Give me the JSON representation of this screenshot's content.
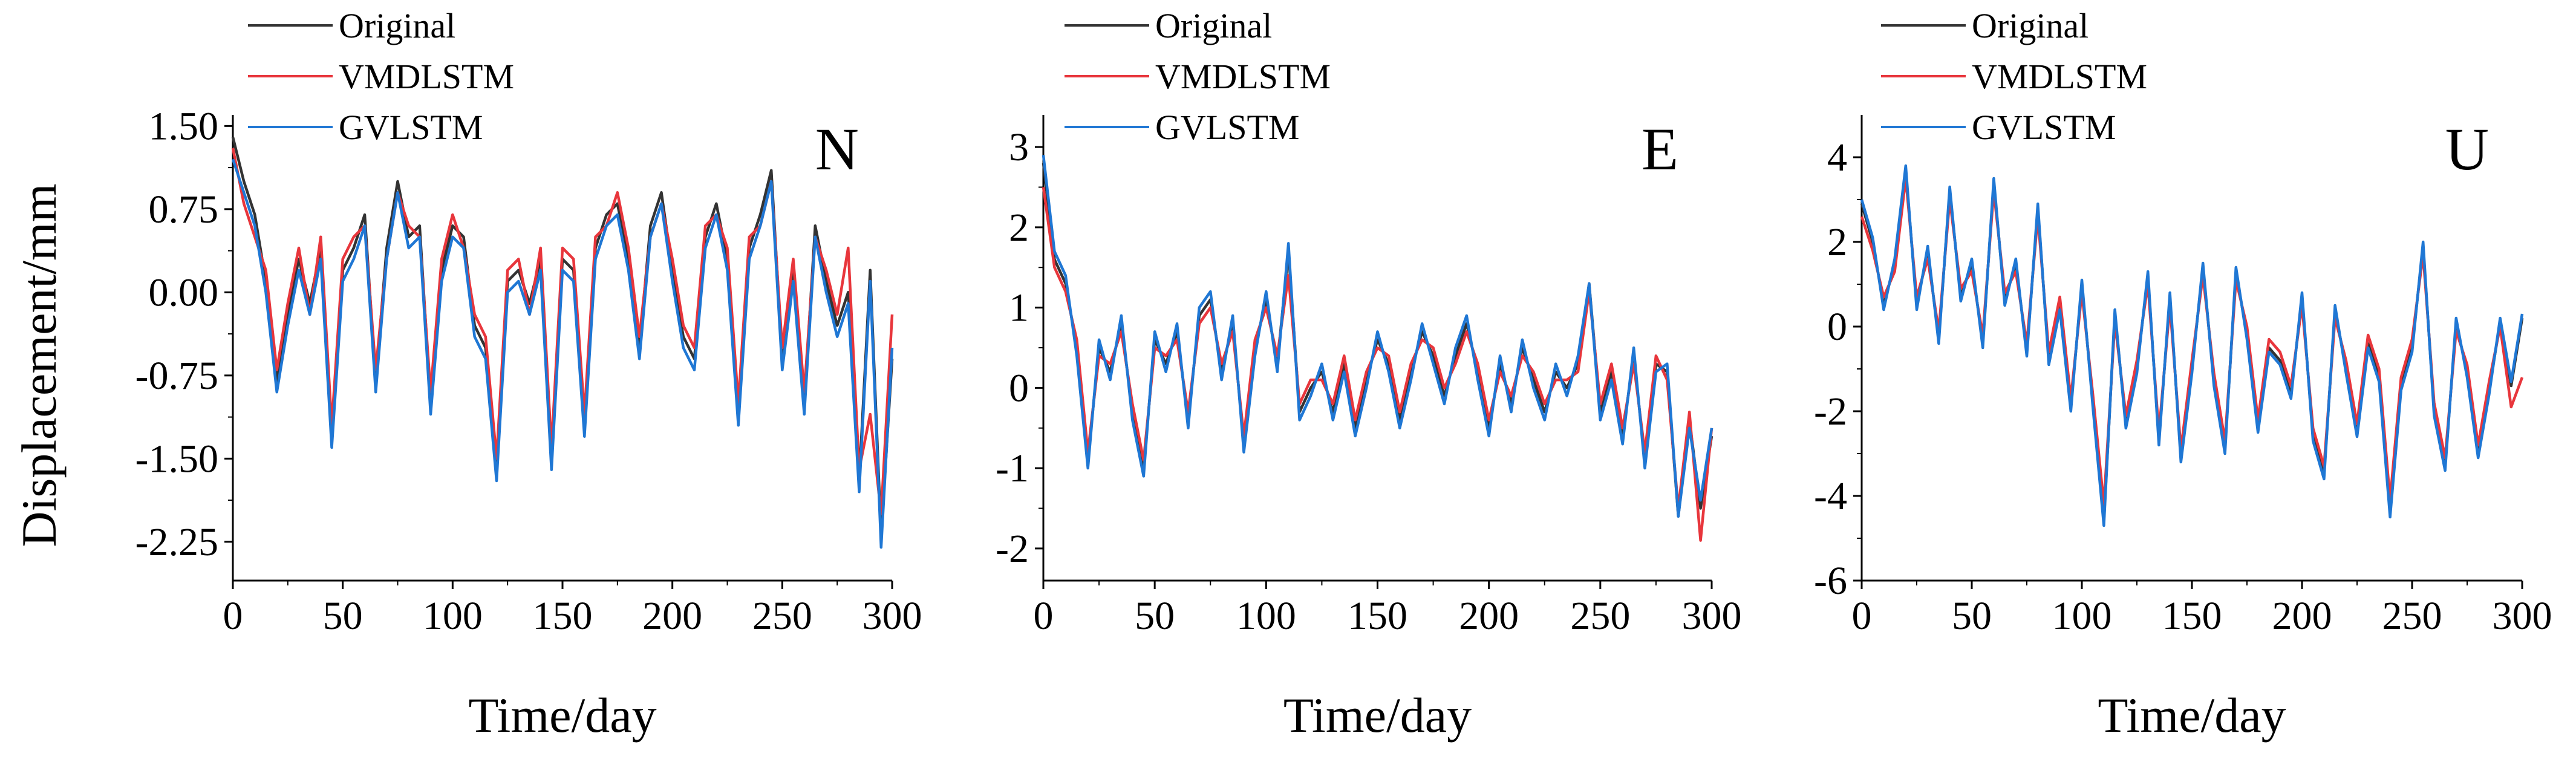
{
  "figure": {
    "ylabel": "Displacement/mm"
  },
  "chart_data": [
    {
      "type": "line",
      "panel_label": "N",
      "xlabel": "Time/day",
      "ylabel": "Displacement/mm",
      "xlim": [
        0,
        300
      ],
      "ylim": [
        -2.6,
        1.6
      ],
      "xticks": [
        0,
        50,
        100,
        150,
        200,
        250,
        300
      ],
      "yticks": [
        -2.25,
        -1.5,
        -0.75,
        0.0,
        0.75,
        1.5
      ],
      "ytick_labels": [
        "-2.25",
        "-1.50",
        "-0.75",
        "0.00",
        "0.75",
        "1.50"
      ],
      "legend": [
        "Original",
        "VMDLSTM",
        "GVLSTM"
      ],
      "x": [
        0,
        5,
        10,
        15,
        20,
        25,
        30,
        35,
        40,
        45,
        50,
        55,
        60,
        65,
        70,
        75,
        80,
        85,
        90,
        95,
        100,
        105,
        110,
        115,
        120,
        125,
        130,
        135,
        140,
        145,
        150,
        155,
        160,
        165,
        170,
        175,
        180,
        185,
        190,
        195,
        200,
        205,
        210,
        215,
        220,
        225,
        230,
        235,
        240,
        245,
        250,
        255,
        260,
        265,
        270,
        275,
        280,
        285,
        290,
        295,
        300
      ],
      "series": [
        {
          "name": "Original",
          "color": "#333333",
          "values": [
            1.4,
            1.0,
            0.7,
            0.1,
            -0.8,
            -0.2,
            0.3,
            -0.1,
            0.4,
            -1.3,
            0.2,
            0.4,
            0.7,
            -0.8,
            0.4,
            1.0,
            0.5,
            0.6,
            -1.0,
            0.2,
            0.6,
            0.5,
            -0.3,
            -0.5,
            -1.6,
            0.1,
            0.2,
            -0.1,
            0.3,
            -1.5,
            0.3,
            0.2,
            -1.2,
            0.4,
            0.7,
            0.8,
            0.3,
            -0.5,
            0.6,
            0.9,
            0.2,
            -0.4,
            -0.6,
            0.5,
            0.8,
            0.3,
            -1.1,
            0.4,
            0.7,
            1.1,
            -0.6,
            0.2,
            -1.0,
            0.6,
            0.1,
            -0.3,
            0.0,
            -1.7,
            0.2,
            -2.2,
            -0.6
          ]
        },
        {
          "name": "VMDLSTM",
          "color": "#e8363c",
          "values": [
            1.3,
            0.8,
            0.5,
            0.2,
            -0.7,
            -0.1,
            0.4,
            -0.2,
            0.5,
            -1.2,
            0.3,
            0.5,
            0.6,
            -0.7,
            0.3,
            0.9,
            0.6,
            0.5,
            -0.9,
            0.3,
            0.7,
            0.4,
            -0.2,
            -0.4,
            -1.5,
            0.2,
            0.3,
            -0.2,
            0.4,
            -1.4,
            0.4,
            0.3,
            -1.1,
            0.5,
            0.6,
            0.9,
            0.4,
            -0.4,
            0.5,
            0.8,
            0.3,
            -0.3,
            -0.5,
            0.6,
            0.7,
            0.4,
            -1.0,
            0.5,
            0.6,
            1.0,
            -0.5,
            0.3,
            -0.9,
            0.5,
            0.2,
            -0.2,
            0.4,
            -1.6,
            -1.1,
            -2.0,
            -0.2
          ]
        },
        {
          "name": "GVLSTM",
          "color": "#1f77d4",
          "values": [
            1.2,
            0.9,
            0.6,
            0.0,
            -0.9,
            -0.3,
            0.2,
            -0.2,
            0.3,
            -1.4,
            0.1,
            0.3,
            0.6,
            -0.9,
            0.3,
            0.9,
            0.4,
            0.5,
            -1.1,
            0.1,
            0.5,
            0.4,
            -0.4,
            -0.6,
            -1.7,
            0.0,
            0.1,
            -0.2,
            0.2,
            -1.6,
            0.2,
            0.1,
            -1.3,
            0.3,
            0.6,
            0.7,
            0.2,
            -0.6,
            0.5,
            0.8,
            0.1,
            -0.5,
            -0.7,
            0.4,
            0.7,
            0.2,
            -1.2,
            0.3,
            0.6,
            1.0,
            -0.7,
            0.1,
            -1.1,
            0.5,
            0.0,
            -0.4,
            -0.1,
            -1.8,
            0.1,
            -2.3,
            -0.5
          ]
        }
      ]
    },
    {
      "type": "line",
      "panel_label": "E",
      "xlabel": "Time/day",
      "ylabel": "",
      "xlim": [
        0,
        300
      ],
      "ylim": [
        -2.4,
        3.4
      ],
      "xticks": [
        0,
        50,
        100,
        150,
        200,
        250,
        300
      ],
      "yticks": [
        -2,
        -1,
        0,
        1,
        2,
        3
      ],
      "ytick_labels": [
        "-2",
        "-1",
        "0",
        "1",
        "2",
        "3"
      ],
      "legend": [
        "Original",
        "VMDLSTM",
        "GVLSTM"
      ],
      "x": [
        0,
        5,
        10,
        15,
        20,
        25,
        30,
        35,
        40,
        45,
        50,
        55,
        60,
        65,
        70,
        75,
        80,
        85,
        90,
        95,
        100,
        105,
        110,
        115,
        120,
        125,
        130,
        135,
        140,
        145,
        150,
        155,
        160,
        165,
        170,
        175,
        180,
        185,
        190,
        195,
        200,
        205,
        210,
        215,
        220,
        225,
        230,
        235,
        240,
        245,
        250,
        255,
        260,
        265,
        270,
        275,
        280,
        285,
        290,
        295,
        300
      ],
      "series": [
        {
          "name": "Original",
          "color": "#333333",
          "values": [
            2.8,
            1.6,
            1.3,
            0.5,
            -0.9,
            0.5,
            0.2,
            0.8,
            -0.3,
            -1.0,
            0.6,
            0.3,
            0.7,
            -0.4,
            0.9,
            1.1,
            0.2,
            0.8,
            -0.7,
            0.5,
            1.1,
            0.3,
            1.7,
            -0.3,
            0.0,
            0.2,
            -0.3,
            0.3,
            -0.5,
            0.1,
            0.6,
            0.3,
            -0.4,
            0.2,
            0.7,
            0.4,
            -0.1,
            0.4,
            0.8,
            0.2,
            -0.5,
            0.3,
            -0.2,
            0.5,
            0.1,
            -0.3,
            0.2,
            0.0,
            0.3,
            1.3,
            -0.3,
            0.2,
            -0.6,
            0.4,
            -0.9,
            0.3,
            0.2,
            -1.6,
            -0.4,
            -1.5,
            -0.6
          ]
        },
        {
          "name": "VMDLSTM",
          "color": "#e8363c",
          "values": [
            2.5,
            1.5,
            1.2,
            0.6,
            -0.8,
            0.4,
            0.3,
            0.7,
            -0.2,
            -0.9,
            0.5,
            0.4,
            0.6,
            -0.3,
            0.8,
            1.0,
            0.3,
            0.7,
            -0.6,
            0.6,
            1.0,
            0.4,
            1.4,
            -0.2,
            0.1,
            0.1,
            -0.2,
            0.4,
            -0.4,
            0.2,
            0.5,
            0.4,
            -0.3,
            0.3,
            0.6,
            0.5,
            0.0,
            0.3,
            0.7,
            0.3,
            -0.4,
            0.2,
            -0.1,
            0.4,
            0.2,
            -0.2,
            0.1,
            0.1,
            0.2,
            1.2,
            -0.2,
            0.3,
            -0.5,
            0.3,
            -0.8,
            0.4,
            0.1,
            -1.5,
            -0.3,
            -1.9,
            -0.5
          ]
        },
        {
          "name": "GVLSTM",
          "color": "#1f77d4",
          "values": [
            2.9,
            1.7,
            1.4,
            0.4,
            -1.0,
            0.6,
            0.1,
            0.9,
            -0.4,
            -1.1,
            0.7,
            0.2,
            0.8,
            -0.5,
            1.0,
            1.2,
            0.1,
            0.9,
            -0.8,
            0.4,
            1.2,
            0.2,
            1.8,
            -0.4,
            -0.1,
            0.3,
            -0.4,
            0.2,
            -0.6,
            0.0,
            0.7,
            0.2,
            -0.5,
            0.1,
            0.8,
            0.3,
            -0.2,
            0.5,
            0.9,
            0.1,
            -0.6,
            0.4,
            -0.3,
            0.6,
            0.0,
            -0.4,
            0.3,
            -0.1,
            0.4,
            1.3,
            -0.4,
            0.1,
            -0.7,
            0.5,
            -1.0,
            0.2,
            0.3,
            -1.6,
            -0.5,
            -1.4,
            -0.5
          ]
        }
      ]
    },
    {
      "type": "line",
      "panel_label": "U",
      "xlabel": "Time/day",
      "ylabel": "",
      "xlim": [
        0,
        300
      ],
      "ylim": [
        -6,
        5
      ],
      "xticks": [
        0,
        50,
        100,
        150,
        200,
        250,
        300
      ],
      "yticks": [
        -6,
        -4,
        -2,
        0,
        2,
        4
      ],
      "ytick_labels": [
        "-6",
        "-4",
        "-2",
        "0",
        "2",
        "4"
      ],
      "legend": [
        "Original",
        "VMDLSTM",
        "GVLSTM"
      ],
      "x": [
        0,
        5,
        10,
        15,
        20,
        25,
        30,
        35,
        40,
        45,
        50,
        55,
        60,
        65,
        70,
        75,
        80,
        85,
        90,
        95,
        100,
        105,
        110,
        115,
        120,
        125,
        130,
        135,
        140,
        145,
        150,
        155,
        160,
        165,
        170,
        175,
        180,
        185,
        190,
        195,
        200,
        205,
        210,
        215,
        220,
        225,
        230,
        235,
        240,
        245,
        250,
        255,
        260,
        265,
        270,
        275,
        280,
        285,
        290,
        295,
        300
      ],
      "series": [
        {
          "name": "Original",
          "color": "#333333",
          "values": [
            2.9,
            2.0,
            0.5,
            1.5,
            3.7,
            0.5,
            1.8,
            -0.3,
            3.2,
            0.7,
            1.5,
            -0.4,
            3.4,
            0.6,
            1.5,
            -0.6,
            2.8,
            -0.8,
            0.5,
            -1.9,
            1.0,
            -1.8,
            -4.6,
            0.3,
            -2.3,
            -1.0,
            1.2,
            -2.7,
            0.7,
            -3.1,
            -1.0,
            1.4,
            -1.3,
            -2.9,
            1.3,
            -0.2,
            -2.4,
            -0.5,
            -0.8,
            -1.6,
            0.7,
            -2.6,
            -3.5,
            0.4,
            -1.0,
            -2.5,
            -0.4,
            -1.2,
            -4.4,
            -1.4,
            -0.5,
            1.9,
            -2.0,
            -3.3,
            0.1,
            -1.1,
            -3.0,
            -1.5,
            0.1,
            -1.4,
            0.2
          ]
        },
        {
          "name": "VMDLSTM",
          "color": "#e8363c",
          "values": [
            2.6,
            1.8,
            0.7,
            1.3,
            3.5,
            0.7,
            1.6,
            -0.1,
            3.0,
            0.9,
            1.3,
            -0.2,
            3.2,
            0.8,
            1.3,
            -0.4,
            2.6,
            -0.6,
            0.7,
            -1.7,
            0.8,
            -1.6,
            -4.2,
            0.1,
            -2.1,
            -0.8,
            1.0,
            -2.5,
            0.5,
            -2.9,
            -0.8,
            1.2,
            -1.1,
            -2.7,
            1.1,
            0.0,
            -2.2,
            -0.3,
            -0.6,
            -1.4,
            0.5,
            -2.4,
            -3.3,
            0.2,
            -0.8,
            -2.3,
            -0.2,
            -1.0,
            -4.1,
            -1.2,
            -0.3,
            1.7,
            -1.8,
            -3.1,
            -0.1,
            -0.9,
            -2.8,
            -1.3,
            0.0,
            -1.9,
            -1.2
          ]
        },
        {
          "name": "GVLSTM",
          "color": "#1f77d4",
          "values": [
            3.0,
            2.1,
            0.4,
            1.6,
            3.8,
            0.4,
            1.9,
            -0.4,
            3.3,
            0.6,
            1.6,
            -0.5,
            3.5,
            0.5,
            1.6,
            -0.7,
            2.9,
            -0.9,
            0.4,
            -2.0,
            1.1,
            -1.9,
            -4.7,
            0.4,
            -2.4,
            -1.1,
            1.3,
            -2.8,
            0.8,
            -3.2,
            -1.1,
            1.5,
            -1.4,
            -3.0,
            1.4,
            -0.3,
            -2.5,
            -0.6,
            -0.9,
            -1.7,
            0.8,
            -2.7,
            -3.6,
            0.5,
            -1.1,
            -2.6,
            -0.5,
            -1.3,
            -4.5,
            -1.5,
            -0.6,
            2.0,
            -2.1,
            -3.4,
            0.2,
            -1.2,
            -3.1,
            -1.6,
            0.2,
            -1.3,
            0.3
          ]
        }
      ]
    }
  ]
}
